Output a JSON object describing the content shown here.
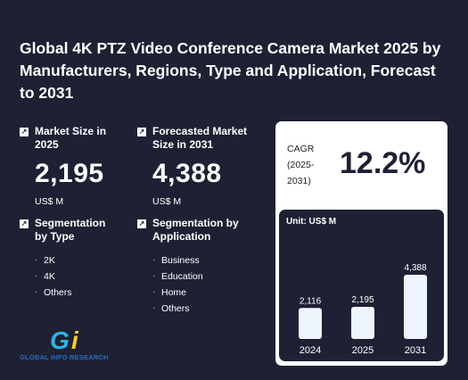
{
  "title": "Global 4K PTZ Video Conference Camera Market 2025 by Manufacturers, Regions, Type and Application, Forecast to 2031",
  "market_size": {
    "label": "Market Size in 2025",
    "value": "2,195",
    "unit": "US$ M"
  },
  "forecast": {
    "label": "Forecasted Market Size in 2031",
    "value": "4,388",
    "unit": "US$ M"
  },
  "seg_type": {
    "label": "Segmentation by Type",
    "items": [
      "2K",
      "4K",
      "Others"
    ]
  },
  "seg_app": {
    "label": "Segmentation by Application",
    "items": [
      "Business",
      "Education",
      "Home",
      "Others"
    ]
  },
  "cagr": {
    "label_line1": "CAGR",
    "label_line2": "(2025-",
    "label_line3": "2031)",
    "value": "12.2%"
  },
  "logo": {
    "text": "GLOBAL INFO RESEARCH"
  },
  "chart_data": {
    "type": "bar",
    "ylabel": "Unit: US$ M",
    "categories": [
      "2024",
      "2025",
      "2031"
    ],
    "values": [
      2116,
      2195,
      4388
    ],
    "data_labels": [
      "2,116",
      "2,195",
      "4,388"
    ],
    "bar_color": "#eef5ff"
  }
}
